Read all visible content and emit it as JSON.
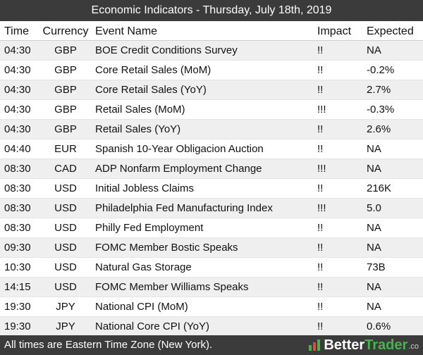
{
  "title": "Economic Indicators - Thursday, July 18th, 2019",
  "columns": {
    "time": "Time",
    "currency": "Currency",
    "event": "Event Name",
    "impact": "Impact",
    "expected": "Expected"
  },
  "rows": [
    {
      "time": "04:30",
      "currency": "GBP",
      "event": "BOE Credit Conditions Survey",
      "impact": "!!",
      "expected": "NA"
    },
    {
      "time": "04:30",
      "currency": "GBP",
      "event": "Core Retail Sales (MoM)",
      "impact": "!!",
      "expected": "-0.2%"
    },
    {
      "time": "04:30",
      "currency": "GBP",
      "event": "Core Retail Sales (YoY)",
      "impact": "!!",
      "expected": "2.7%"
    },
    {
      "time": "04:30",
      "currency": "GBP",
      "event": "Retail Sales (MoM)",
      "impact": "!!!",
      "expected": "-0.3%"
    },
    {
      "time": "04:30",
      "currency": "GBP",
      "event": "Retail Sales (YoY)",
      "impact": "!!",
      "expected": "2.6%"
    },
    {
      "time": "04:40",
      "currency": "EUR",
      "event": "Spanish 10-Year Obligacion Auction",
      "impact": "!!",
      "expected": "NA"
    },
    {
      "time": "08:30",
      "currency": "CAD",
      "event": "ADP Nonfarm Employment Change",
      "impact": "!!!",
      "expected": "NA"
    },
    {
      "time": "08:30",
      "currency": "USD",
      "event": "Initial Jobless Claims",
      "impact": "!!",
      "expected": "216K"
    },
    {
      "time": "08:30",
      "currency": "USD",
      "event": "Philadelphia Fed Manufacturing Index",
      "impact": "!!!",
      "expected": "5.0"
    },
    {
      "time": "08:30",
      "currency": "USD",
      "event": "Philly Fed Employment",
      "impact": "!!",
      "expected": "NA"
    },
    {
      "time": "09:30",
      "currency": "USD",
      "event": "FOMC Member Bostic Speaks",
      "impact": "!!",
      "expected": "NA"
    },
    {
      "time": "10:30",
      "currency": "USD",
      "event": "Natural Gas Storage",
      "impact": "!!",
      "expected": "73B"
    },
    {
      "time": "14:15",
      "currency": "USD",
      "event": "FOMC Member Williams Speaks",
      "impact": "!!",
      "expected": "NA"
    },
    {
      "time": "19:30",
      "currency": "JPY",
      "event": "National CPI (MoM)",
      "impact": "!!",
      "expected": "NA"
    },
    {
      "time": "19:30",
      "currency": "JPY",
      "event": "National Core CPI (YoY)",
      "impact": "!!",
      "expected": "0.6%"
    }
  ],
  "footer": {
    "note": "All times are Eastern Time Zone (New York).",
    "brand_part1": "Better",
    "brand_part2": "Trader",
    "brand_suffix": ".co",
    "brand_icon": "bar-chart-icon"
  },
  "colors": {
    "bar_background": "#3b3b3b",
    "row_stripe": "#efefef",
    "brand_accent": "#49b24a"
  }
}
